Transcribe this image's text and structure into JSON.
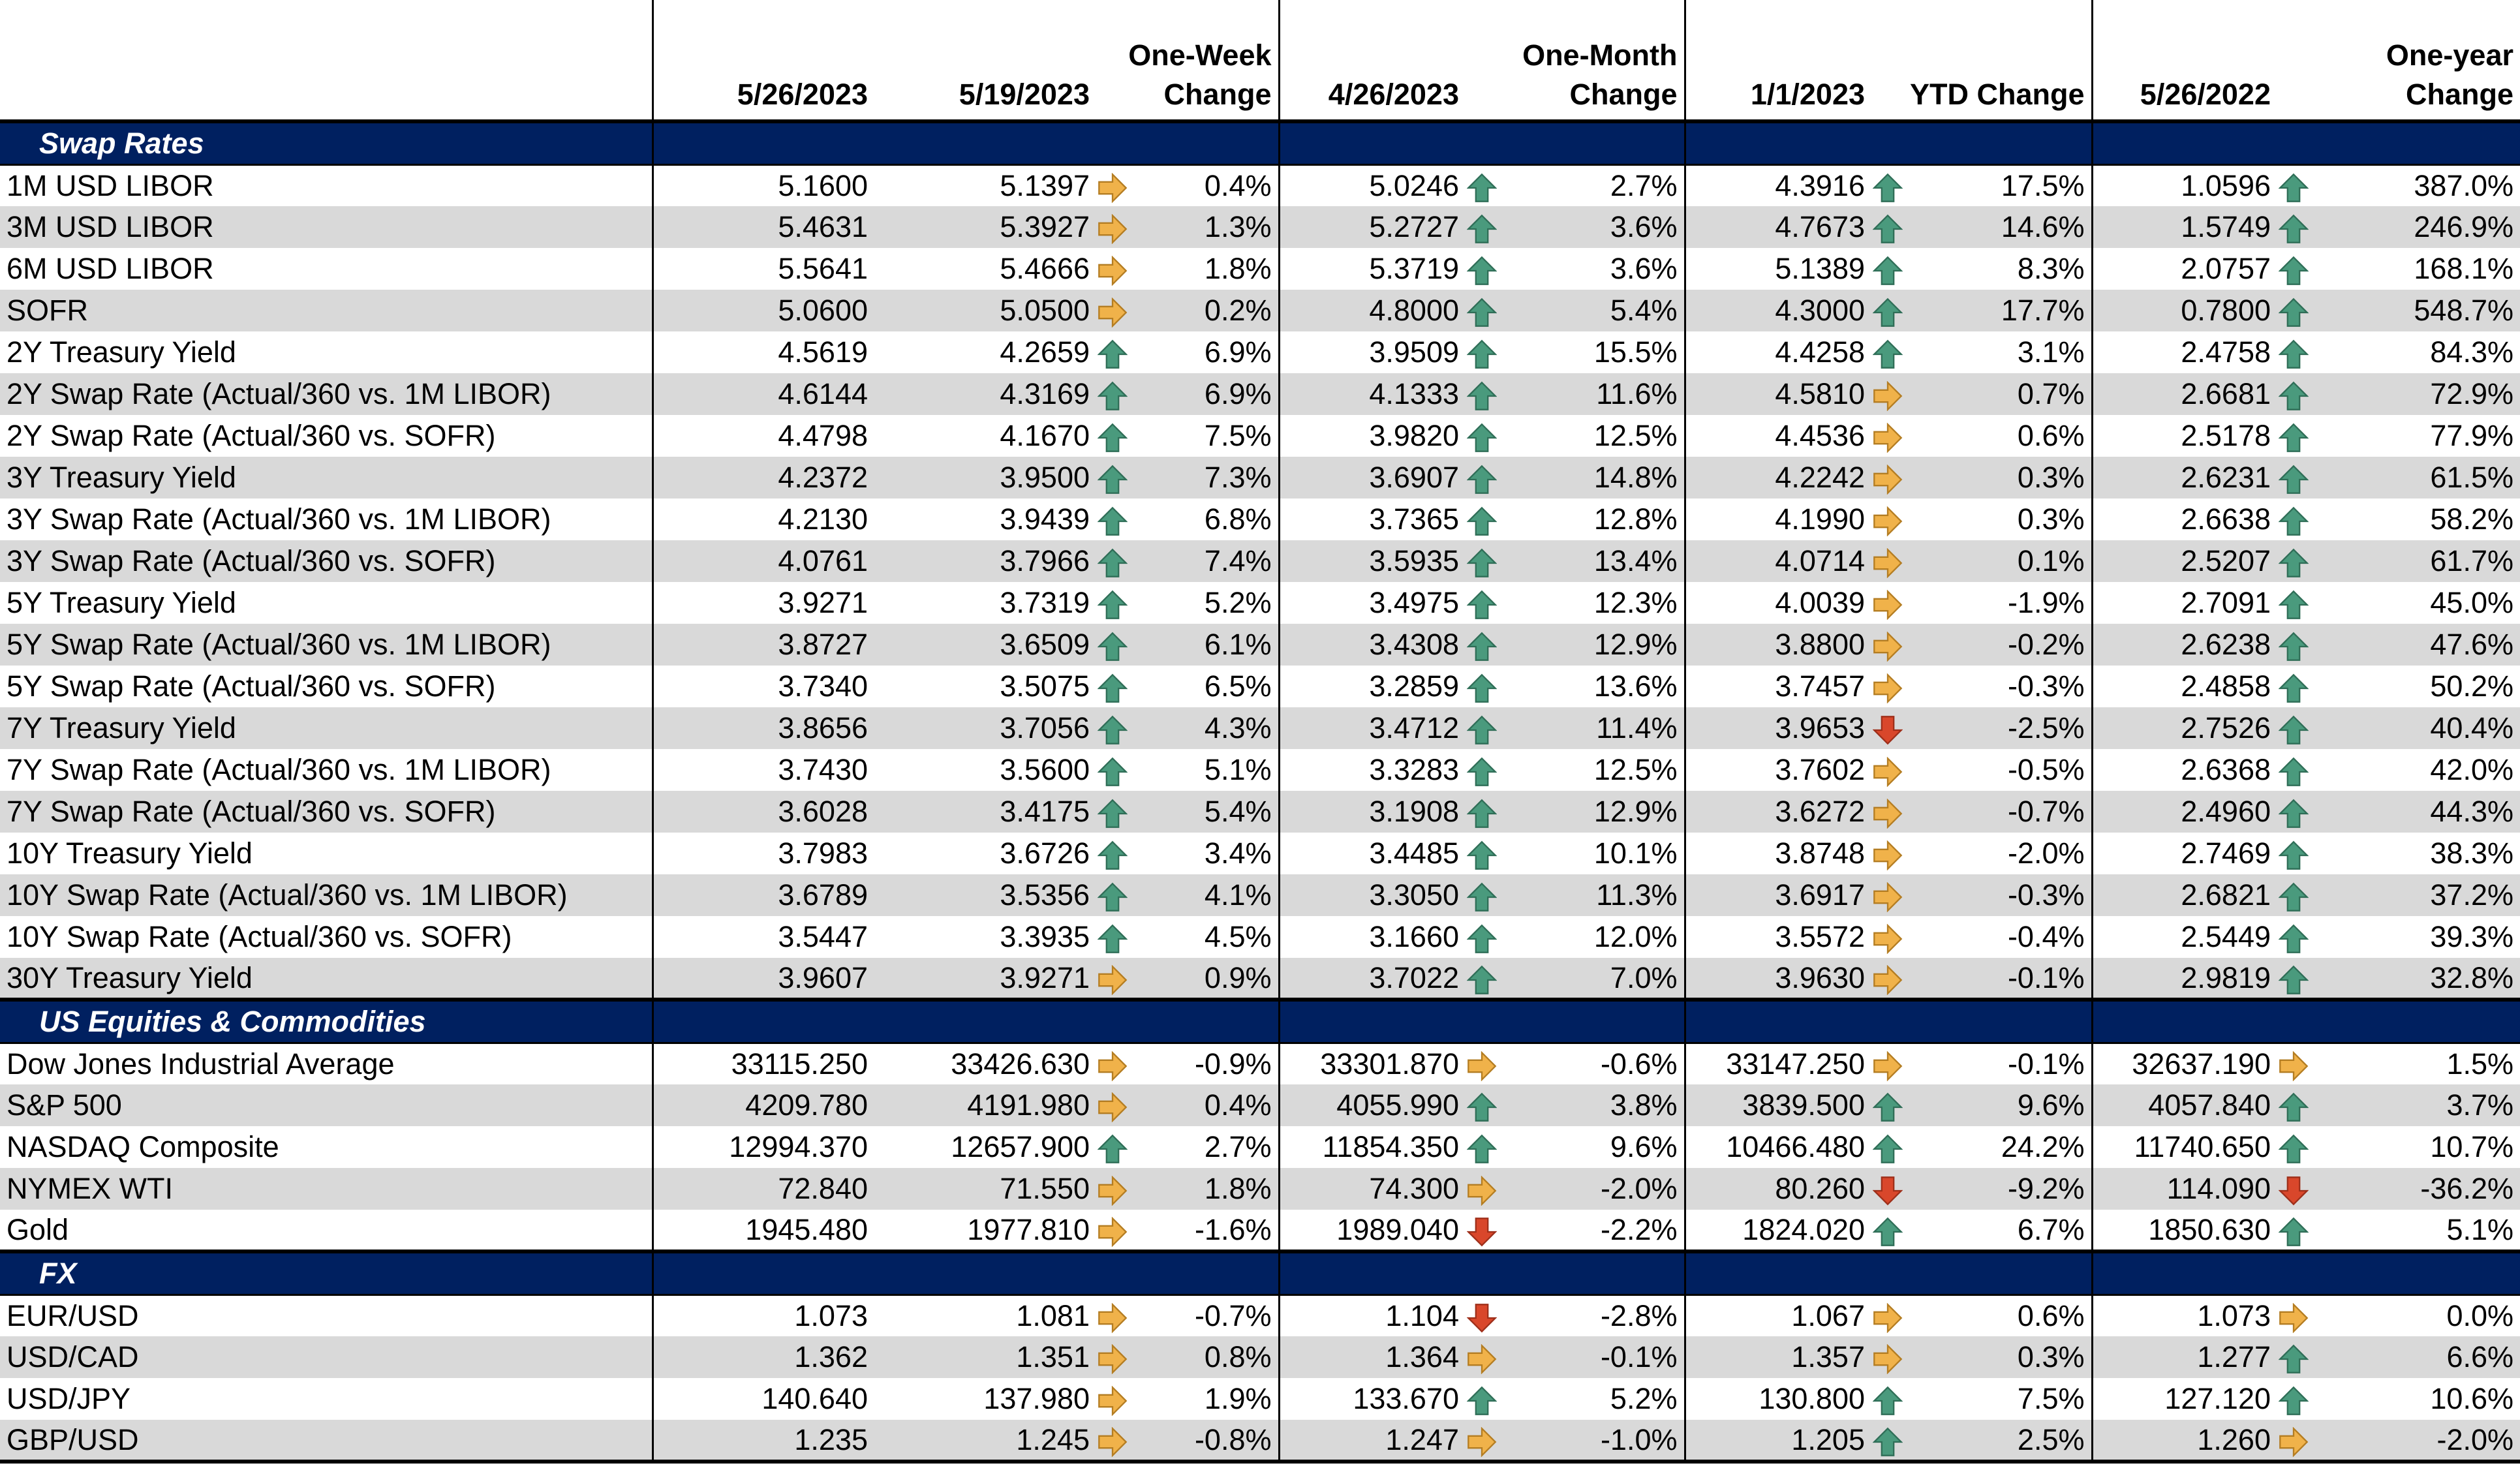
{
  "headers": {
    "c1": "5/26/2023",
    "c2": "5/19/2023",
    "c3_line1": "One-Week",
    "c3_line2": "Change",
    "c4": "4/26/2023",
    "c5_line1": "One-Month",
    "c5_line2": "Change",
    "c6": "1/1/2023",
    "c7": "YTD Change",
    "c8": "5/26/2022",
    "c9_line1": "One-year",
    "c9_line2": "Change"
  },
  "colors": {
    "up": "#4a9a7d",
    "flat": "#f0b24a",
    "down": "#d9472b",
    "section": "#002060",
    "stripe": "#d9d9d9"
  },
  "sections": [
    {
      "title": "Swap Rates",
      "rows": [
        {
          "label": "1M USD LIBOR",
          "v1": "5.1600",
          "v2": "5.1397",
          "a1": "flat",
          "p1": "0.4%",
          "v3": "5.0246",
          "a2": "up",
          "p2": "2.7%",
          "v4": "4.3916",
          "a3": "up",
          "p3": "17.5%",
          "v5": "1.0596",
          "a4": "up",
          "p4": "387.0%"
        },
        {
          "label": "3M USD LIBOR",
          "v1": "5.4631",
          "v2": "5.3927",
          "a1": "flat",
          "p1": "1.3%",
          "v3": "5.2727",
          "a2": "up",
          "p2": "3.6%",
          "v4": "4.7673",
          "a3": "up",
          "p3": "14.6%",
          "v5": "1.5749",
          "a4": "up",
          "p4": "246.9%"
        },
        {
          "label": "6M USD LIBOR",
          "v1": "5.5641",
          "v2": "5.4666",
          "a1": "flat",
          "p1": "1.8%",
          "v3": "5.3719",
          "a2": "up",
          "p2": "3.6%",
          "v4": "5.1389",
          "a3": "up",
          "p3": "8.3%",
          "v5": "2.0757",
          "a4": "up",
          "p4": "168.1%"
        },
        {
          "label": "SOFR",
          "v1": "5.0600",
          "v2": "5.0500",
          "a1": "flat",
          "p1": "0.2%",
          "v3": "4.8000",
          "a2": "up",
          "p2": "5.4%",
          "v4": "4.3000",
          "a3": "up",
          "p3": "17.7%",
          "v5": "0.7800",
          "a4": "up",
          "p4": "548.7%"
        },
        {
          "label": "2Y Treasury Yield",
          "v1": "4.5619",
          "v2": "4.2659",
          "a1": "up",
          "p1": "6.9%",
          "v3": "3.9509",
          "a2": "up",
          "p2": "15.5%",
          "v4": "4.4258",
          "a3": "up",
          "p3": "3.1%",
          "v5": "2.4758",
          "a4": "up",
          "p4": "84.3%"
        },
        {
          "label": "2Y Swap Rate (Actual/360 vs. 1M LIBOR)",
          "v1": "4.6144",
          "v2": "4.3169",
          "a1": "up",
          "p1": "6.9%",
          "v3": "4.1333",
          "a2": "up",
          "p2": "11.6%",
          "v4": "4.5810",
          "a3": "flat",
          "p3": "0.7%",
          "v5": "2.6681",
          "a4": "up",
          "p4": "72.9%"
        },
        {
          "label": "2Y Swap Rate (Actual/360 vs. SOFR)",
          "v1": "4.4798",
          "v2": "4.1670",
          "a1": "up",
          "p1": "7.5%",
          "v3": "3.9820",
          "a2": "up",
          "p2": "12.5%",
          "v4": "4.4536",
          "a3": "flat",
          "p3": "0.6%",
          "v5": "2.5178",
          "a4": "up",
          "p4": "77.9%"
        },
        {
          "label": "3Y Treasury Yield",
          "v1": "4.2372",
          "v2": "3.9500",
          "a1": "up",
          "p1": "7.3%",
          "v3": "3.6907",
          "a2": "up",
          "p2": "14.8%",
          "v4": "4.2242",
          "a3": "flat",
          "p3": "0.3%",
          "v5": "2.6231",
          "a4": "up",
          "p4": "61.5%"
        },
        {
          "label": "3Y Swap Rate (Actual/360 vs. 1M LIBOR)",
          "v1": "4.2130",
          "v2": "3.9439",
          "a1": "up",
          "p1": "6.8%",
          "v3": "3.7365",
          "a2": "up",
          "p2": "12.8%",
          "v4": "4.1990",
          "a3": "flat",
          "p3": "0.3%",
          "v5": "2.6638",
          "a4": "up",
          "p4": "58.2%"
        },
        {
          "label": "3Y Swap Rate (Actual/360 vs. SOFR)",
          "v1": "4.0761",
          "v2": "3.7966",
          "a1": "up",
          "p1": "7.4%",
          "v3": "3.5935",
          "a2": "up",
          "p2": "13.4%",
          "v4": "4.0714",
          "a3": "flat",
          "p3": "0.1%",
          "v5": "2.5207",
          "a4": "up",
          "p4": "61.7%"
        },
        {
          "label": "5Y Treasury Yield",
          "v1": "3.9271",
          "v2": "3.7319",
          "a1": "up",
          "p1": "5.2%",
          "v3": "3.4975",
          "a2": "up",
          "p2": "12.3%",
          "v4": "4.0039",
          "a3": "flat",
          "p3": "-1.9%",
          "v5": "2.7091",
          "a4": "up",
          "p4": "45.0%"
        },
        {
          "label": "5Y Swap Rate (Actual/360 vs. 1M LIBOR)",
          "v1": "3.8727",
          "v2": "3.6509",
          "a1": "up",
          "p1": "6.1%",
          "v3": "3.4308",
          "a2": "up",
          "p2": "12.9%",
          "v4": "3.8800",
          "a3": "flat",
          "p3": "-0.2%",
          "v5": "2.6238",
          "a4": "up",
          "p4": "47.6%"
        },
        {
          "label": "5Y Swap Rate (Actual/360 vs. SOFR)",
          "v1": "3.7340",
          "v2": "3.5075",
          "a1": "up",
          "p1": "6.5%",
          "v3": "3.2859",
          "a2": "up",
          "p2": "13.6%",
          "v4": "3.7457",
          "a3": "flat",
          "p3": "-0.3%",
          "v5": "2.4858",
          "a4": "up",
          "p4": "50.2%"
        },
        {
          "label": "7Y Treasury Yield",
          "v1": "3.8656",
          "v2": "3.7056",
          "a1": "up",
          "p1": "4.3%",
          "v3": "3.4712",
          "a2": "up",
          "p2": "11.4%",
          "v4": "3.9653",
          "a3": "down",
          "p3": "-2.5%",
          "v5": "2.7526",
          "a4": "up",
          "p4": "40.4%"
        },
        {
          "label": "7Y Swap Rate (Actual/360 vs. 1M LIBOR)",
          "v1": "3.7430",
          "v2": "3.5600",
          "a1": "up",
          "p1": "5.1%",
          "v3": "3.3283",
          "a2": "up",
          "p2": "12.5%",
          "v4": "3.7602",
          "a3": "flat",
          "p3": "-0.5%",
          "v5": "2.6368",
          "a4": "up",
          "p4": "42.0%"
        },
        {
          "label": "7Y Swap Rate (Actual/360 vs. SOFR)",
          "v1": "3.6028",
          "v2": "3.4175",
          "a1": "up",
          "p1": "5.4%",
          "v3": "3.1908",
          "a2": "up",
          "p2": "12.9%",
          "v4": "3.6272",
          "a3": "flat",
          "p3": "-0.7%",
          "v5": "2.4960",
          "a4": "up",
          "p4": "44.3%"
        },
        {
          "label": "10Y Treasury Yield",
          "v1": "3.7983",
          "v2": "3.6726",
          "a1": "up",
          "p1": "3.4%",
          "v3": "3.4485",
          "a2": "up",
          "p2": "10.1%",
          "v4": "3.8748",
          "a3": "flat",
          "p3": "-2.0%",
          "v5": "2.7469",
          "a4": "up",
          "p4": "38.3%"
        },
        {
          "label": "10Y Swap Rate (Actual/360 vs. 1M LIBOR)",
          "v1": "3.6789",
          "v2": "3.5356",
          "a1": "up",
          "p1": "4.1%",
          "v3": "3.3050",
          "a2": "up",
          "p2": "11.3%",
          "v4": "3.6917",
          "a3": "flat",
          "p3": "-0.3%",
          "v5": "2.6821",
          "a4": "up",
          "p4": "37.2%"
        },
        {
          "label": "10Y Swap Rate (Actual/360 vs. SOFR)",
          "v1": "3.5447",
          "v2": "3.3935",
          "a1": "up",
          "p1": "4.5%",
          "v3": "3.1660",
          "a2": "up",
          "p2": "12.0%",
          "v4": "3.5572",
          "a3": "flat",
          "p3": "-0.4%",
          "v5": "2.5449",
          "a4": "up",
          "p4": "39.3%"
        },
        {
          "label": "30Y Treasury Yield",
          "v1": "3.9607",
          "v2": "3.9271",
          "a1": "flat",
          "p1": "0.9%",
          "v3": "3.7022",
          "a2": "up",
          "p2": "7.0%",
          "v4": "3.9630",
          "a3": "flat",
          "p3": "-0.1%",
          "v5": "2.9819",
          "a4": "up",
          "p4": "32.8%"
        }
      ]
    },
    {
      "title": "US Equities & Commodities",
      "rows": [
        {
          "label": "Dow Jones Industrial Average",
          "v1": "33115.250",
          "v2": "33426.630",
          "a1": "flat",
          "p1": "-0.9%",
          "v3": "33301.870",
          "a2": "flat",
          "p2": "-0.6%",
          "v4": "33147.250",
          "a3": "flat",
          "p3": "-0.1%",
          "v5": "32637.190",
          "a4": "flat",
          "p4": "1.5%"
        },
        {
          "label": "S&P 500",
          "v1": "4209.780",
          "v2": "4191.980",
          "a1": "flat",
          "p1": "0.4%",
          "v3": "4055.990",
          "a2": "up",
          "p2": "3.8%",
          "v4": "3839.500",
          "a3": "up",
          "p3": "9.6%",
          "v5": "4057.840",
          "a4": "up",
          "p4": "3.7%"
        },
        {
          "label": "NASDAQ Composite",
          "v1": "12994.370",
          "v2": "12657.900",
          "a1": "up",
          "p1": "2.7%",
          "v3": "11854.350",
          "a2": "up",
          "p2": "9.6%",
          "v4": "10466.480",
          "a3": "up",
          "p3": "24.2%",
          "v5": "11740.650",
          "a4": "up",
          "p4": "10.7%"
        },
        {
          "label": "NYMEX WTI",
          "v1": "72.840",
          "v2": "71.550",
          "a1": "flat",
          "p1": "1.8%",
          "v3": "74.300",
          "a2": "flat",
          "p2": "-2.0%",
          "v4": "80.260",
          "a3": "down",
          "p3": "-9.2%",
          "v5": "114.090",
          "a4": "down",
          "p4": "-36.2%"
        },
        {
          "label": "Gold",
          "v1": "1945.480",
          "v2": "1977.810",
          "a1": "flat",
          "p1": "-1.6%",
          "v3": "1989.040",
          "a2": "down",
          "p2": "-2.2%",
          "v4": "1824.020",
          "a3": "up",
          "p3": "6.7%",
          "v5": "1850.630",
          "a4": "up",
          "p4": "5.1%"
        }
      ]
    },
    {
      "title": "FX",
      "rows": [
        {
          "label": "EUR/USD",
          "v1": "1.073",
          "v2": "1.081",
          "a1": "flat",
          "p1": "-0.7%",
          "v3": "1.104",
          "a2": "down",
          "p2": "-2.8%",
          "v4": "1.067",
          "a3": "flat",
          "p3": "0.6%",
          "v5": "1.073",
          "a4": "flat",
          "p4": "0.0%"
        },
        {
          "label": "USD/CAD",
          "v1": "1.362",
          "v2": "1.351",
          "a1": "flat",
          "p1": "0.8%",
          "v3": "1.364",
          "a2": "flat",
          "p2": "-0.1%",
          "v4": "1.357",
          "a3": "flat",
          "p3": "0.3%",
          "v5": "1.277",
          "a4": "up",
          "p4": "6.6%"
        },
        {
          "label": "USD/JPY",
          "v1": "140.640",
          "v2": "137.980",
          "a1": "flat",
          "p1": "1.9%",
          "v3": "133.670",
          "a2": "up",
          "p2": "5.2%",
          "v4": "130.800",
          "a3": "up",
          "p3": "7.5%",
          "v5": "127.120",
          "a4": "up",
          "p4": "10.6%"
        },
        {
          "label": "GBP/USD",
          "v1": "1.235",
          "v2": "1.245",
          "a1": "flat",
          "p1": "-0.8%",
          "v3": "1.247",
          "a2": "flat",
          "p2": "-1.0%",
          "v4": "1.205",
          "a3": "up",
          "p3": "2.5%",
          "v5": "1.260",
          "a4": "flat",
          "p4": "-2.0%"
        }
      ]
    }
  ]
}
